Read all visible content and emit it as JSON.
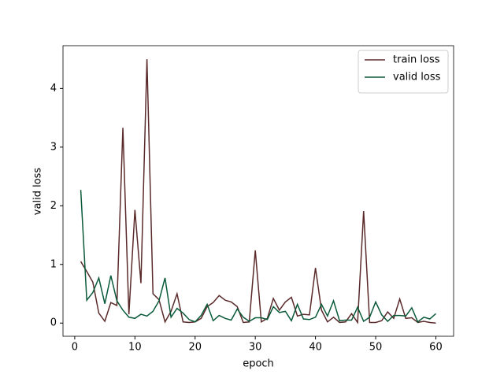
{
  "chart_data": {
    "type": "line",
    "x_label": "epoch",
    "y_label": "valid loss",
    "x": [
      1,
      2,
      3,
      4,
      5,
      6,
      7,
      8,
      9,
      10,
      11,
      12,
      13,
      14,
      15,
      16,
      17,
      18,
      19,
      20,
      21,
      22,
      23,
      24,
      25,
      26,
      27,
      28,
      29,
      30,
      31,
      32,
      33,
      34,
      35,
      36,
      37,
      38,
      39,
      40,
      41,
      42,
      43,
      44,
      45,
      46,
      47,
      48,
      49,
      50,
      51,
      52,
      53,
      54,
      55,
      56,
      57,
      58,
      59,
      60
    ],
    "series": [
      {
        "name": "train loss",
        "color": "#5a2a2a",
        "values": [
          1.05,
          0.88,
          0.7,
          0.17,
          0.03,
          0.35,
          0.3,
          3.33,
          0.15,
          1.93,
          0.68,
          4.5,
          0.5,
          0.4,
          0.02,
          0.2,
          0.5,
          0.02,
          0.01,
          0.02,
          0.08,
          0.28,
          0.35,
          0.47,
          0.39,
          0.36,
          0.28,
          0.01,
          0.02,
          1.24,
          0.02,
          0.08,
          0.42,
          0.22,
          0.36,
          0.44,
          0.12,
          0.15,
          0.14,
          0.94,
          0.22,
          0.02,
          0.1,
          0.01,
          0.02,
          0.16,
          0.01,
          1.91,
          0.01,
          0.01,
          0.04,
          0.19,
          0.08,
          0.41,
          0.08,
          0.09,
          0.01,
          0.03,
          0.01,
          0.0
        ]
      },
      {
        "name": "valid loss",
        "color": "#0a5a3a",
        "values": [
          2.27,
          0.39,
          0.52,
          0.77,
          0.33,
          0.81,
          0.38,
          0.22,
          0.1,
          0.08,
          0.15,
          0.12,
          0.2,
          0.38,
          0.77,
          0.1,
          0.25,
          0.17,
          0.06,
          0.02,
          0.13,
          0.32,
          0.04,
          0.13,
          0.08,
          0.05,
          0.24,
          0.1,
          0.03,
          0.09,
          0.09,
          0.06,
          0.28,
          0.18,
          0.2,
          0.04,
          0.32,
          0.07,
          0.06,
          0.1,
          0.32,
          0.12,
          0.38,
          0.04,
          0.05,
          0.05,
          0.27,
          0.03,
          0.1,
          0.36,
          0.14,
          0.03,
          0.13,
          0.13,
          0.12,
          0.26,
          0.02,
          0.1,
          0.07,
          0.16
        ]
      }
    ],
    "xlim": [
      -1.95,
      62.95
    ],
    "xticks": [
      0,
      10,
      20,
      30,
      40,
      50,
      60
    ],
    "ylim": [
      -0.225,
      4.73
    ],
    "yticks": [
      0,
      1,
      2,
      3,
      4
    ],
    "legend": "upper right",
    "grid": false
  }
}
